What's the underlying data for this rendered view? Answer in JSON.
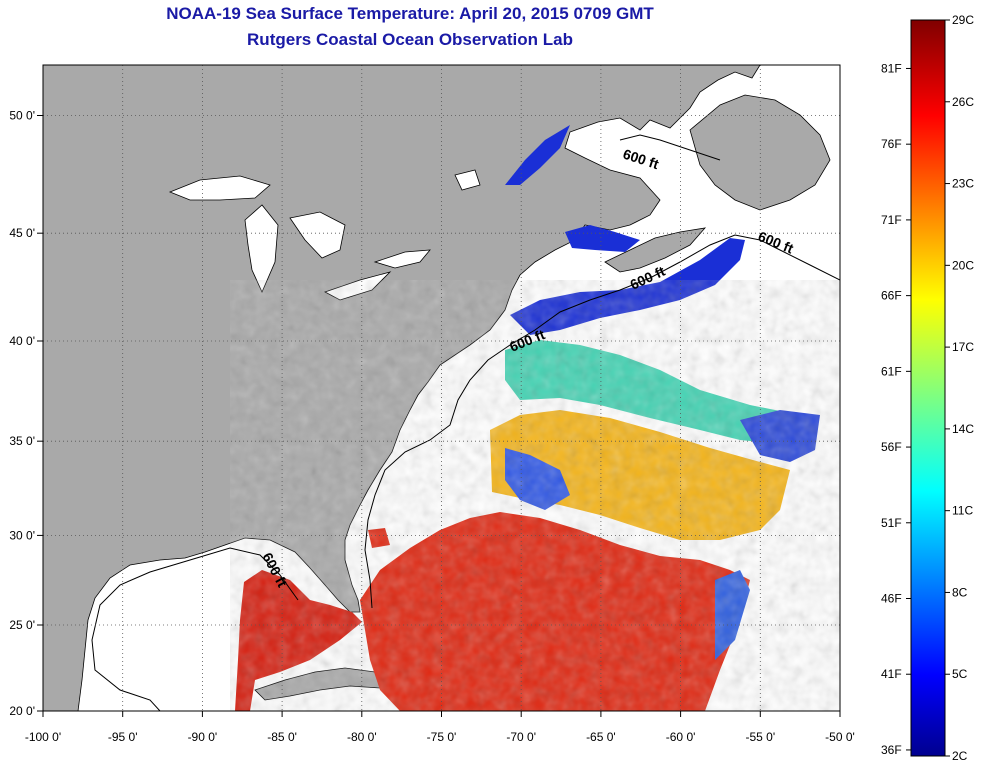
{
  "title": "NOAA-19 Sea Surface Temperature:  April 20, 2015 0709 GMT",
  "subtitle": "Rutgers Coastal Ocean Observation Lab",
  "map": {
    "lon_range": [
      -100,
      -50
    ],
    "lat_range": [
      20,
      52
    ],
    "x_ticks": [
      {
        "lon": -100,
        "label": "-100 0'"
      },
      {
        "lon": -95,
        "label": "-95 0'"
      },
      {
        "lon": -90,
        "label": "-90 0'"
      },
      {
        "lon": -85,
        "label": "-85 0'"
      },
      {
        "lon": -80,
        "label": "-80 0'"
      },
      {
        "lon": -75,
        "label": "-75 0'"
      },
      {
        "lon": -70,
        "label": "-70 0'"
      },
      {
        "lon": -65,
        "label": "-65 0'"
      },
      {
        "lon": -60,
        "label": "-60 0'"
      },
      {
        "lon": -55,
        "label": "-55 0'"
      },
      {
        "lon": -50,
        "label": "-50 0'"
      }
    ],
    "y_ticks": [
      {
        "lat": 20,
        "label": "20 0'"
      },
      {
        "lat": 25,
        "label": "25 0'"
      },
      {
        "lat": 30,
        "label": "30 0'"
      },
      {
        "lat": 35,
        "label": "35 0'"
      },
      {
        "lat": 40,
        "label": "40 0'"
      },
      {
        "lat": 45,
        "label": "45 0'"
      },
      {
        "lat": 50,
        "label": "50 0'"
      }
    ],
    "contour_label": "600 ft",
    "colors": {
      "land": "#a9a9a9",
      "no_data": "#ffffff",
      "grid": "#555555"
    }
  },
  "colorbar": {
    "celsius": [
      {
        "value": 29,
        "label": "29C"
      },
      {
        "value": 26,
        "label": "26C"
      },
      {
        "value": 23,
        "label": "23C"
      },
      {
        "value": 20,
        "label": "20C"
      },
      {
        "value": 17,
        "label": "17C"
      },
      {
        "value": 14,
        "label": "14C"
      },
      {
        "value": 11,
        "label": "11C"
      },
      {
        "value": 8,
        "label": "8C"
      },
      {
        "value": 5,
        "label": "5C"
      },
      {
        "value": 2,
        "label": "2C"
      }
    ],
    "fahrenheit": [
      {
        "value": 81,
        "label": "81F"
      },
      {
        "value": 76,
        "label": "76F"
      },
      {
        "value": 71,
        "label": "71F"
      },
      {
        "value": 66,
        "label": "66F"
      },
      {
        "value": 61,
        "label": "61F"
      },
      {
        "value": 56,
        "label": "56F"
      },
      {
        "value": 51,
        "label": "51F"
      },
      {
        "value": 46,
        "label": "46F"
      },
      {
        "value": 41,
        "label": "41F"
      },
      {
        "value": 36,
        "label": "36F"
      }
    ]
  }
}
